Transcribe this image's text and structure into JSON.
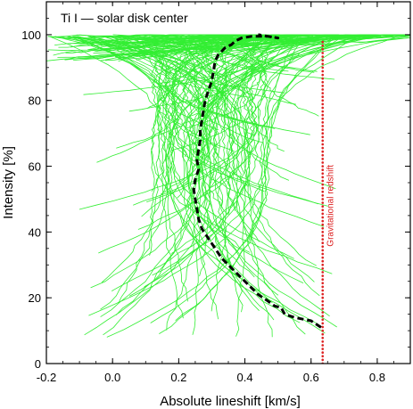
{
  "chart_data": {
    "type": "line",
    "title": "Ti I — solar disk center",
    "xlabel": "Absolute lineshift  [km/s]",
    "ylabel": "Intensity  [%]",
    "xlim": [
      -0.2,
      0.9
    ],
    "ylim": [
      0,
      110
    ],
    "x_ticks": [
      -0.2,
      0.0,
      0.2,
      0.4,
      0.6,
      0.8
    ],
    "x_tick_labels": [
      "-0.2",
      "0.0",
      "0.2",
      "0.4",
      "0.6",
      "0.8"
    ],
    "y_ticks": [
      0,
      20,
      40,
      60,
      80,
      100
    ],
    "y_tick_labels": [
      "0",
      "20",
      "40",
      "60",
      "80",
      "100"
    ],
    "grid": false,
    "colors": {
      "lines": "#33ee33",
      "mean": "#000000",
      "redshift": "#dd2222"
    },
    "series": [
      {
        "style": "dashed",
        "color": "#000000",
        "x": [
          0.63,
          0.6,
          0.55,
          0.52,
          0.51,
          0.49,
          0.47,
          0.44,
          0.41,
          0.38,
          0.35,
          0.33,
          0.31,
          0.29,
          0.27,
          0.26,
          0.255,
          0.25,
          0.245,
          0.25,
          0.26,
          0.255,
          0.26,
          0.265,
          0.265,
          0.27,
          0.275,
          0.28,
          0.29,
          0.3,
          0.305,
          0.31,
          0.32,
          0.33,
          0.34,
          0.35,
          0.36,
          0.37,
          0.39,
          0.42,
          0.47,
          0.5,
          0.47,
          0.44
        ],
        "y": [
          11,
          13,
          14,
          15,
          17,
          17.5,
          19,
          21,
          24,
          27,
          30,
          32,
          35,
          38,
          41,
          44,
          47,
          50,
          53,
          56,
          59,
          62,
          65,
          68,
          71,
          74,
          77,
          80,
          83,
          86,
          89,
          92,
          94,
          95,
          96,
          96.5,
          97,
          98,
          99,
          99.5,
          99.5,
          99,
          99.5,
          100
        ]
      }
    ],
    "bundle": {
      "count": 110,
      "core_min_x": -0.1,
      "core_max_x": 0.9,
      "core_min_y": 8,
      "core_max_y": 100
    },
    "reference_line": {
      "x": 0.635,
      "y_range": [
        0,
        98
      ],
      "style": "dotted",
      "color": "#dd2222",
      "label": "Gravitational redshift"
    }
  }
}
